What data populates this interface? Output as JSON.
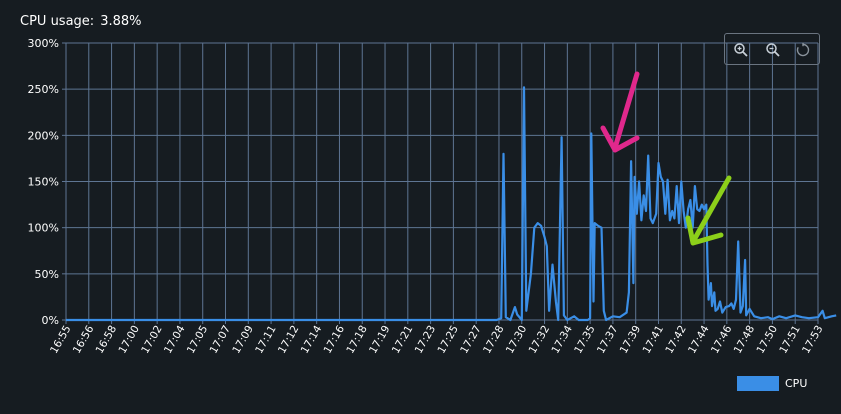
{
  "header": {
    "label": "CPU usage:",
    "value": "3.88%"
  },
  "toolbar": {
    "icons": [
      "zoom-in-icon",
      "zoom-out-icon",
      "reset-zoom-icon"
    ]
  },
  "legend": {
    "label": "CPU"
  },
  "colors": {
    "background": "#161c21",
    "grid": "#5e7593",
    "series": "#3a8ee6",
    "arrow_magenta": "#e0288c",
    "arrow_green": "#8ccf1a"
  },
  "chart_data": {
    "type": "line",
    "y_ticks": [
      "0%",
      "50%",
      "100%",
      "150%",
      "200%",
      "250%",
      "300%"
    ],
    "ylim": [
      0,
      300
    ],
    "x_ticks": [
      "16:55",
      "16:56",
      "16:58",
      "17:00",
      "17:02",
      "17:04",
      "17:05",
      "17:07",
      "17:09",
      "17:11",
      "17:12",
      "17:14",
      "17:16",
      "17:18",
      "17:19",
      "17:21",
      "17:23",
      "17:25",
      "17:27",
      "17:28",
      "17:30",
      "17:32",
      "17:34",
      "17:35",
      "17:37",
      "17:39",
      "17:41",
      "17:42",
      "17:44",
      "17:46",
      "17:48",
      "17:50",
      "17:51",
      "17:53"
    ],
    "series": [
      {
        "name": "CPU",
        "points": [
          [
            0,
            0
          ],
          [
            18.9,
            0
          ],
          [
            19.1,
            2
          ],
          [
            19.2,
            180
          ],
          [
            19.3,
            3
          ],
          [
            19.5,
            0
          ],
          [
            19.7,
            14
          ],
          [
            19.8,
            6
          ],
          [
            20.0,
            0
          ],
          [
            20.1,
            252
          ],
          [
            20.2,
            10
          ],
          [
            20.4,
            50
          ],
          [
            20.55,
            100
          ],
          [
            20.7,
            105
          ],
          [
            20.85,
            102
          ],
          [
            21.0,
            90
          ],
          [
            21.1,
            80
          ],
          [
            21.2,
            10
          ],
          [
            21.35,
            60
          ],
          [
            21.5,
            20
          ],
          [
            21.6,
            0
          ],
          [
            21.75,
            198
          ],
          [
            21.85,
            5
          ],
          [
            22.0,
            0
          ],
          [
            22.3,
            4
          ],
          [
            22.5,
            0
          ],
          [
            22.9,
            0
          ],
          [
            23.0,
            2
          ],
          [
            23.05,
            202
          ],
          [
            23.15,
            20
          ],
          [
            23.2,
            105
          ],
          [
            23.35,
            102
          ],
          [
            23.5,
            100
          ],
          [
            23.6,
            10
          ],
          [
            23.7,
            0
          ],
          [
            24.0,
            4
          ],
          [
            24.3,
            3
          ],
          [
            24.6,
            8
          ],
          [
            24.7,
            30
          ],
          [
            24.8,
            172
          ],
          [
            24.9,
            40
          ],
          [
            24.95,
            155
          ],
          [
            25.05,
            115
          ],
          [
            25.15,
            150
          ],
          [
            25.25,
            108
          ],
          [
            25.35,
            135
          ],
          [
            25.45,
            118
          ],
          [
            25.55,
            178
          ],
          [
            25.65,
            110
          ],
          [
            25.75,
            105
          ],
          [
            25.9,
            115
          ],
          [
            26.0,
            170
          ],
          [
            26.1,
            155
          ],
          [
            26.2,
            150
          ],
          [
            26.3,
            115
          ],
          [
            26.4,
            152
          ],
          [
            26.5,
            108
          ],
          [
            26.6,
            118
          ],
          [
            26.7,
            110
          ],
          [
            26.8,
            145
          ],
          [
            26.9,
            105
          ],
          [
            27.0,
            150
          ],
          [
            27.1,
            118
          ],
          [
            27.2,
            100
          ],
          [
            27.3,
            120
          ],
          [
            27.4,
            130
          ],
          [
            27.5,
            100
          ],
          [
            27.6,
            145
          ],
          [
            27.7,
            120
          ],
          [
            27.8,
            118
          ],
          [
            27.9,
            125
          ],
          [
            28.0,
            120
          ],
          [
            28.1,
            125
          ],
          [
            28.15,
            60
          ],
          [
            28.2,
            22
          ],
          [
            28.3,
            40
          ],
          [
            28.35,
            15
          ],
          [
            28.45,
            30
          ],
          [
            28.5,
            10
          ],
          [
            28.6,
            12
          ],
          [
            28.7,
            20
          ],
          [
            28.8,
            8
          ],
          [
            28.95,
            14
          ],
          [
            29.1,
            15
          ],
          [
            29.2,
            18
          ],
          [
            29.3,
            12
          ],
          [
            29.4,
            22
          ],
          [
            29.5,
            85
          ],
          [
            29.6,
            8
          ],
          [
            29.7,
            15
          ],
          [
            29.8,
            65
          ],
          [
            29.85,
            5
          ],
          [
            30.0,
            12
          ],
          [
            30.2,
            4
          ],
          [
            30.5,
            2
          ],
          [
            30.8,
            3
          ],
          [
            31.0,
            1
          ],
          [
            31.3,
            4
          ],
          [
            31.6,
            2
          ],
          [
            32.0,
            5
          ],
          [
            32.3,
            3
          ],
          [
            32.6,
            2
          ],
          [
            33.0,
            3
          ],
          [
            33.2,
            10
          ],
          [
            33.3,
            2
          ],
          [
            33.6,
            4
          ],
          [
            33.8,
            5
          ]
        ]
      }
    ]
  }
}
